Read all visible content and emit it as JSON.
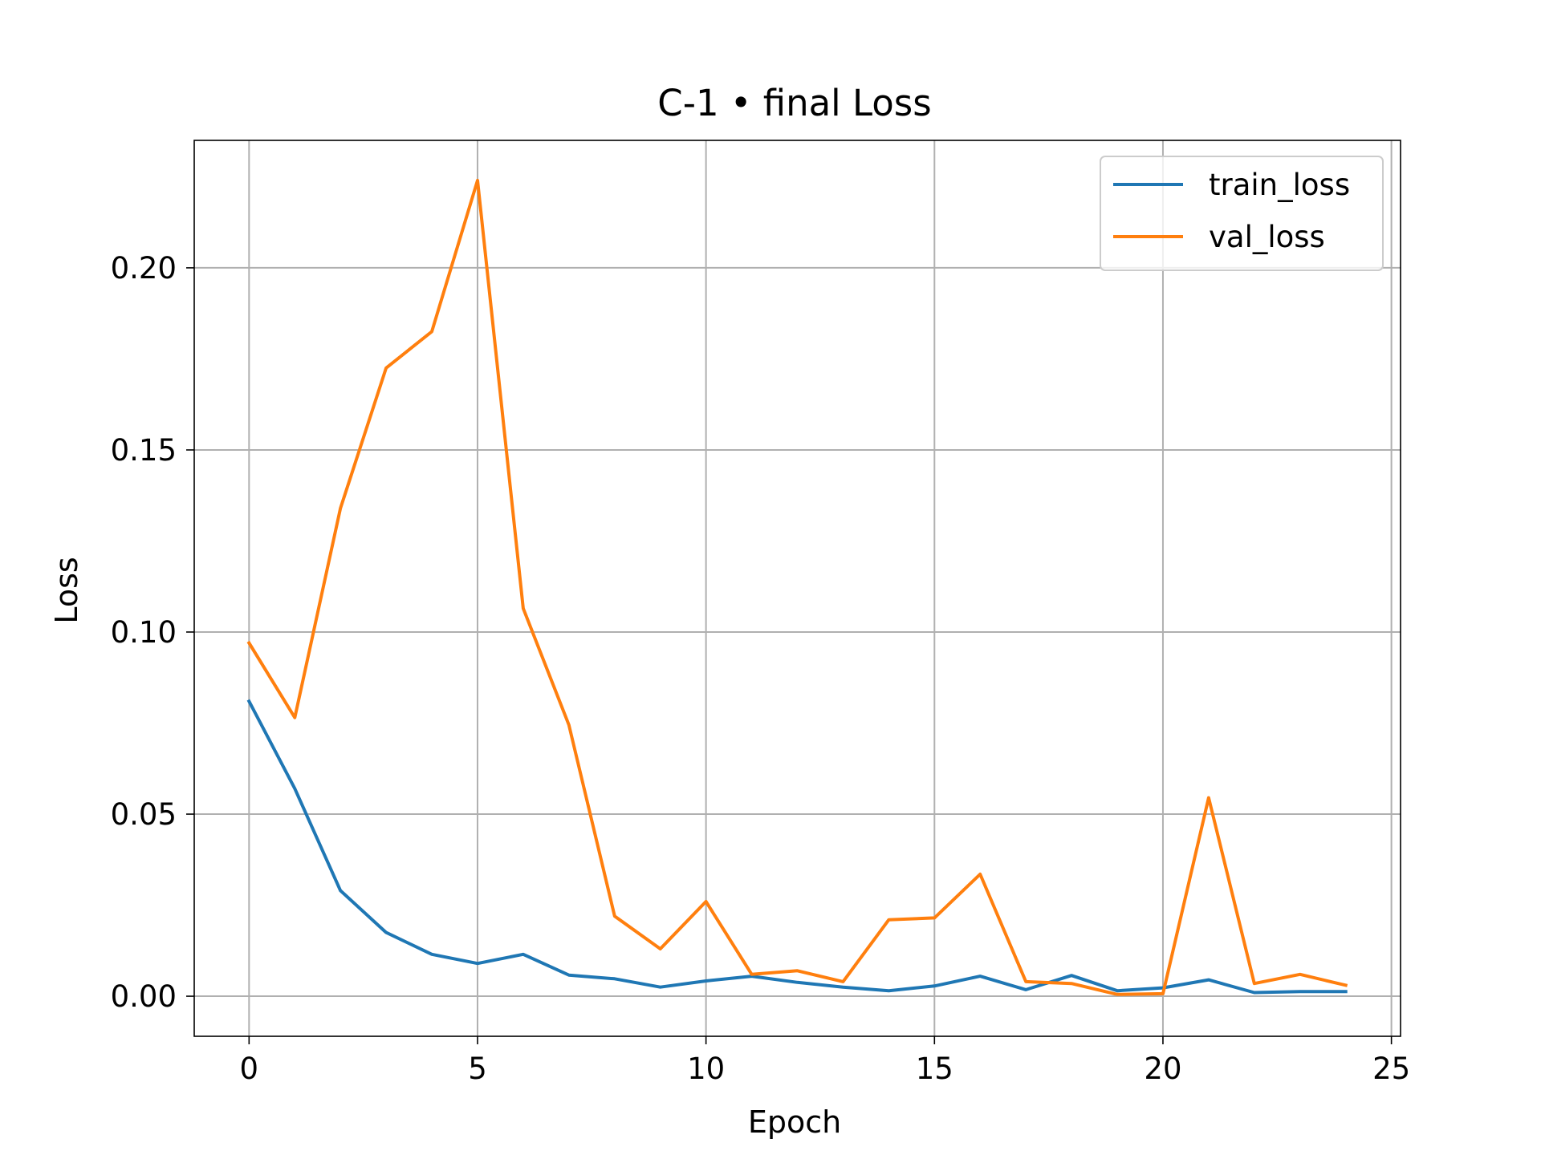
{
  "chart_data": {
    "type": "line",
    "title": "C-1 • final Loss",
    "xlabel": "Epoch",
    "ylabel": "Loss",
    "xlim": [
      -1.2,
      25.2
    ],
    "ylim": [
      -0.011,
      0.235
    ],
    "xticks": [
      0,
      5,
      10,
      15,
      20,
      25
    ],
    "xtick_labels": [
      "0",
      "5",
      "10",
      "15",
      "20",
      "25"
    ],
    "yticks": [
      0.0,
      0.05,
      0.1,
      0.15,
      0.2
    ],
    "ytick_labels": [
      "0.00",
      "0.05",
      "0.10",
      "0.15",
      "0.20"
    ],
    "grid": true,
    "legend_position": "top-right",
    "x": [
      0,
      1,
      2,
      3,
      4,
      5,
      6,
      7,
      8,
      9,
      10,
      11,
      12,
      13,
      14,
      15,
      16,
      17,
      18,
      19,
      20,
      21,
      22,
      23,
      24
    ],
    "series": [
      {
        "name": "train_loss",
        "color": "#1f77b4",
        "values": [
          0.081,
          0.057,
          0.029,
          0.0175,
          0.0115,
          0.009,
          0.0115,
          0.0058,
          0.0048,
          0.0025,
          0.0042,
          0.0055,
          0.0038,
          0.0025,
          0.0015,
          0.0028,
          0.0055,
          0.0018,
          0.0057,
          0.0015,
          0.0023,
          0.0045,
          0.001,
          0.0013,
          0.0013
        ]
      },
      {
        "name": "val_loss",
        "color": "#ff7f0e",
        "values": [
          0.097,
          0.0765,
          0.134,
          0.1725,
          0.1825,
          0.224,
          0.1065,
          0.0745,
          0.022,
          0.013,
          0.026,
          0.006,
          0.007,
          0.004,
          0.021,
          0.0215,
          0.0335,
          0.004,
          0.0035,
          0.0005,
          0.0007,
          0.0545,
          0.0035,
          0.006,
          0.003
        ]
      }
    ]
  }
}
